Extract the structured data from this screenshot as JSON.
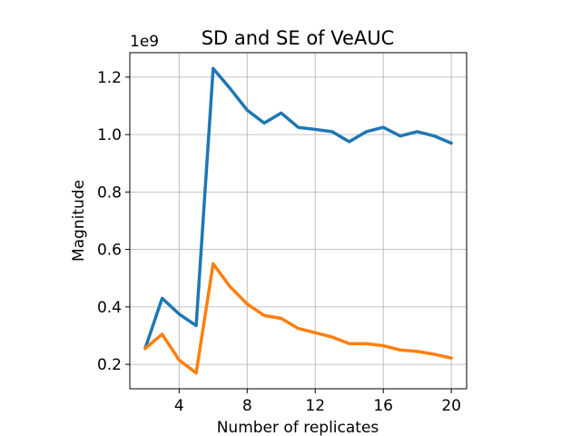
{
  "chart_data": {
    "type": "line",
    "title": "SD and SE of VeAUC",
    "xlabel": "Number of replicates",
    "ylabel": "Magnitude",
    "y_offset_label": "1e9",
    "xlim": [
      1.1,
      20.9
    ],
    "ylim": [
      0.115,
      1.285
    ],
    "xticks": [
      4,
      8,
      12,
      16,
      20
    ],
    "yticks": [
      0.2,
      0.4,
      0.6,
      0.8,
      1.0,
      1.2
    ],
    "ytick_labels": [
      "0.2",
      "0.4",
      "0.6",
      "0.8",
      "1.0",
      "1.2"
    ],
    "grid": true,
    "x": [
      2,
      3,
      4,
      5,
      6,
      7,
      8,
      9,
      10,
      11,
      12,
      13,
      14,
      15,
      16,
      17,
      18,
      19,
      20
    ],
    "series": [
      {
        "color": "#1f77b4",
        "values": [
          0.255,
          0.43,
          0.375,
          0.335,
          1.23,
          1.16,
          1.085,
          1.04,
          1.075,
          1.025,
          1.018,
          1.01,
          0.975,
          1.01,
          1.025,
          0.995,
          1.01,
          0.995,
          0.97
        ]
      },
      {
        "color": "#ff7f0e",
        "values": [
          0.255,
          0.305,
          0.215,
          0.17,
          0.55,
          0.47,
          0.41,
          0.37,
          0.36,
          0.325,
          0.31,
          0.295,
          0.272,
          0.272,
          0.265,
          0.25,
          0.245,
          0.235,
          0.222
        ]
      }
    ]
  }
}
